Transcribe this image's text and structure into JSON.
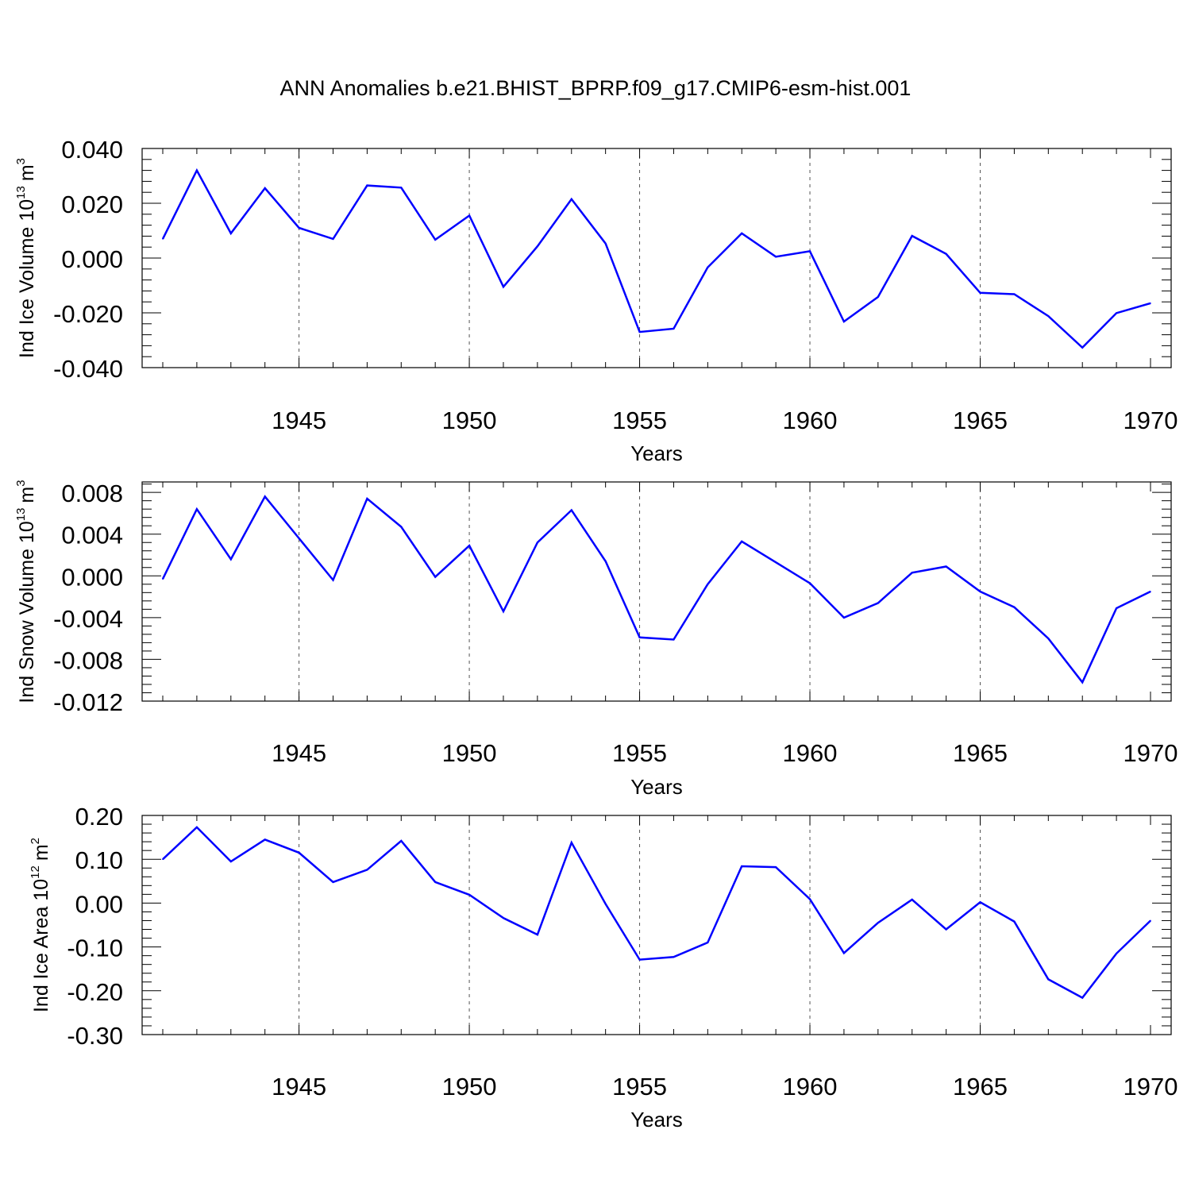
{
  "title": "ANN Anomalies b.e21.BHIST_BPRP.f09_g17.CMIP6-esm-hist.001",
  "line_color": "#0000ff",
  "chart_data": [
    {
      "type": "line",
      "ylabel": "Ind Ice Volume 10",
      "ylabel_sup": "13",
      "ylabel_unit": "m",
      "ylabel_unit_sup": "3",
      "xlabel": "Years",
      "xlim": [
        1941,
        1970
      ],
      "ylim": [
        -0.04,
        0.04
      ],
      "yticks": [
        -0.04,
        -0.02,
        0.0,
        0.02,
        0.04
      ],
      "ytick_labels": [
        "-0.040",
        "-0.020",
        "0.000",
        "0.020",
        "0.040"
      ],
      "xticks": [
        1945,
        1950,
        1955,
        1960,
        1965,
        1970
      ],
      "xtick_labels": [
        "1945",
        "1950",
        "1955",
        "1960",
        "1965",
        "1970"
      ],
      "grid": "vertical dashed",
      "series": [
        {
          "x": [
            1941,
            1942,
            1943,
            1944,
            1945,
            1946,
            1947,
            1948,
            1949,
            1950,
            1951,
            1952,
            1953,
            1954,
            1955,
            1956,
            1957,
            1958,
            1959,
            1960,
            1961,
            1962,
            1963,
            1964,
            1965,
            1966,
            1967,
            1968,
            1969,
            1970
          ],
          "values": [
            0.007,
            0.032,
            0.009,
            0.0255,
            0.011,
            0.007,
            0.0265,
            0.0257,
            0.0067,
            0.0155,
            -0.0105,
            0.0043,
            0.0215,
            0.0053,
            -0.027,
            -0.0258,
            -0.0034,
            0.009,
            0.0005,
            0.0025,
            -0.0232,
            -0.0142,
            0.0081,
            0.0015,
            -0.0127,
            -0.0132,
            -0.0212,
            -0.0327,
            -0.0201,
            -0.0165
          ]
        }
      ]
    },
    {
      "type": "line",
      "ylabel": "Ind Snow Volume 10",
      "ylabel_sup": "13",
      "ylabel_unit": "m",
      "ylabel_unit_sup": "3",
      "xlabel": "Years",
      "xlim": [
        1941,
        1970
      ],
      "ylim": [
        -0.012,
        0.009
      ],
      "yticks": [
        -0.012,
        -0.008,
        -0.004,
        0.0,
        0.004,
        0.008
      ],
      "ytick_labels": [
        "-0.012",
        "-0.008",
        "-0.004",
        "0.000",
        "0.004",
        "0.008"
      ],
      "xticks": [
        1945,
        1950,
        1955,
        1960,
        1965,
        1970
      ],
      "xtick_labels": [
        "1945",
        "1950",
        "1955",
        "1960",
        "1965",
        "1970"
      ],
      "grid": "vertical dashed",
      "series": [
        {
          "x": [
            1941,
            1942,
            1943,
            1944,
            1945,
            1946,
            1947,
            1948,
            1949,
            1950,
            1951,
            1952,
            1953,
            1954,
            1955,
            1956,
            1957,
            1958,
            1959,
            1960,
            1961,
            1962,
            1963,
            1964,
            1965,
            1966,
            1967,
            1968,
            1969,
            1970
          ],
          "values": [
            -0.0003,
            0.0064,
            0.0016,
            0.0076,
            0.0036,
            -0.0004,
            0.0074,
            0.0047,
            -0.0001,
            0.0029,
            -0.0034,
            0.0032,
            0.0063,
            0.0014,
            -0.0059,
            -0.0061,
            -0.0008,
            0.0033,
            0.0013,
            -0.0007,
            -0.004,
            -0.0026,
            0.0003,
            0.0009,
            -0.0015,
            -0.003,
            -0.006,
            -0.0102,
            -0.0031,
            -0.0015
          ]
        }
      ]
    },
    {
      "type": "line",
      "ylabel": "Ind Ice Area 10",
      "ylabel_sup": "12",
      "ylabel_unit": "m",
      "ylabel_unit_sup": "2",
      "xlabel": "Years",
      "xlim": [
        1941,
        1970
      ],
      "ylim": [
        -0.3,
        0.2
      ],
      "yticks": [
        -0.3,
        -0.2,
        -0.1,
        0.0,
        0.1,
        0.2
      ],
      "ytick_labels": [
        "-0.30",
        "-0.20",
        "-0.10",
        "0.00",
        "0.10",
        "0.20"
      ],
      "xticks": [
        1945,
        1950,
        1955,
        1960,
        1965,
        1970
      ],
      "xtick_labels": [
        "1945",
        "1950",
        "1955",
        "1960",
        "1965",
        "1970"
      ],
      "grid": "vertical dashed",
      "series": [
        {
          "x": [
            1941,
            1942,
            1943,
            1944,
            1945,
            1946,
            1947,
            1948,
            1949,
            1950,
            1951,
            1952,
            1953,
            1954,
            1955,
            1956,
            1957,
            1958,
            1959,
            1960,
            1961,
            1962,
            1963,
            1964,
            1965,
            1966,
            1967,
            1968,
            1969,
            1970
          ],
          "values": [
            0.1,
            0.173,
            0.095,
            0.145,
            0.115,
            0.048,
            0.076,
            0.142,
            0.048,
            0.019,
            -0.034,
            -0.072,
            0.138,
            -0.002,
            -0.129,
            -0.123,
            -0.09,
            0.084,
            0.082,
            0.009,
            -0.114,
            -0.045,
            0.008,
            -0.06,
            0.002,
            -0.042,
            -0.174,
            -0.216,
            -0.115,
            -0.04
          ]
        }
      ]
    }
  ]
}
